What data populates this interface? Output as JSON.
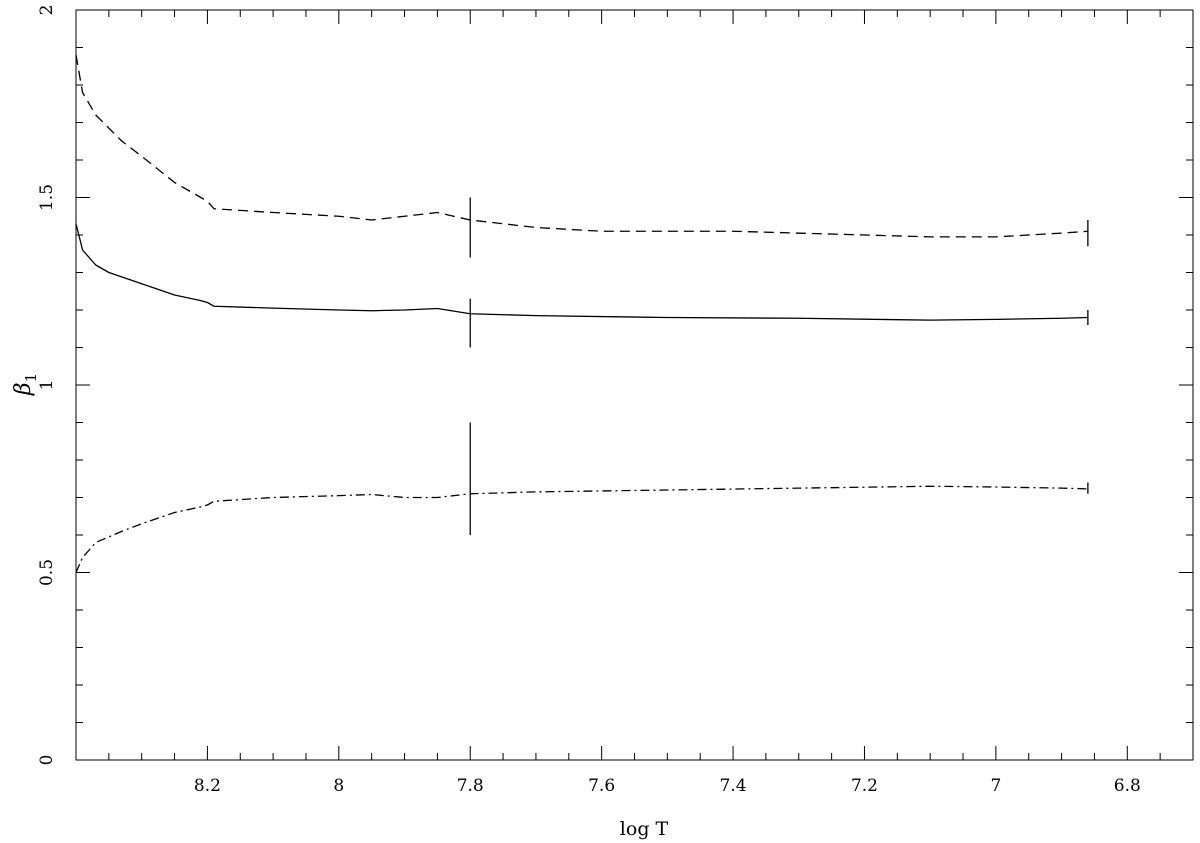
{
  "chart_data": {
    "type": "line",
    "xlabel": "log T",
    "ylabel": "β",
    "ylabel_subscript": "1",
    "xlim": [
      8.4,
      6.7
    ],
    "ylim": [
      0,
      2
    ],
    "x_reversed": true,
    "xticks": [
      8.2,
      8,
      7.8,
      7.6,
      7.4,
      7.2,
      7,
      6.8
    ],
    "xtick_labels": [
      "8.2",
      "8",
      "7.8",
      "7.6",
      "7.4",
      "7.2",
      "7",
      "6.8"
    ],
    "xminor_step": 0.05,
    "yticks": [
      0,
      0.5,
      1,
      1.5,
      2
    ],
    "ytick_labels": [
      "0",
      "0.5",
      "1",
      "1.5",
      "2"
    ],
    "yminor_step": 0.1,
    "grid": false,
    "legend": "none",
    "series": [
      {
        "line_style": "dashed",
        "x": [
          8.4,
          8.39,
          8.37,
          8.33,
          8.3,
          8.25,
          8.21,
          8.2,
          8.19,
          8.1,
          8.0,
          7.95,
          7.9,
          7.85,
          7.8,
          7.7,
          7.6,
          7.4,
          7.2,
          7.1,
          7.0,
          6.9,
          6.86
        ],
        "y": [
          1.88,
          1.78,
          1.72,
          1.65,
          1.61,
          1.54,
          1.5,
          1.49,
          1.47,
          1.46,
          1.45,
          1.44,
          1.45,
          1.46,
          1.44,
          1.42,
          1.41,
          1.41,
          1.4,
          1.395,
          1.395,
          1.405,
          1.41
        ]
      },
      {
        "line_style": "solid",
        "x": [
          8.4,
          8.39,
          8.37,
          8.35,
          8.3,
          8.25,
          8.21,
          8.2,
          8.19,
          8.1,
          8.0,
          7.95,
          7.9,
          7.85,
          7.8,
          7.7,
          7.5,
          7.3,
          7.1,
          7.0,
          6.9,
          6.86
        ],
        "y": [
          1.43,
          1.36,
          1.32,
          1.3,
          1.27,
          1.24,
          1.225,
          1.22,
          1.21,
          1.205,
          1.2,
          1.198,
          1.2,
          1.204,
          1.19,
          1.185,
          1.18,
          1.178,
          1.173,
          1.175,
          1.178,
          1.18
        ]
      },
      {
        "line_style": "dash-dot",
        "x": [
          8.4,
          8.39,
          8.37,
          8.33,
          8.3,
          8.25,
          8.21,
          8.2,
          8.19,
          8.1,
          8.0,
          7.95,
          7.9,
          7.85,
          7.8,
          7.7,
          7.5,
          7.3,
          7.1,
          7.0,
          6.9,
          6.86
        ],
        "y": [
          0.5,
          0.54,
          0.58,
          0.61,
          0.63,
          0.66,
          0.675,
          0.68,
          0.69,
          0.7,
          0.705,
          0.708,
          0.7,
          0.7,
          0.71,
          0.715,
          0.72,
          0.725,
          0.73,
          0.728,
          0.725,
          0.723
        ]
      }
    ],
    "vertical_markers": [
      {
        "x": 7.8,
        "y_ranges": [
          [
            1.34,
            1.5
          ],
          [
            1.1,
            1.23
          ],
          [
            0.6,
            0.9
          ]
        ]
      },
      {
        "x": 6.86,
        "y_ranges": [
          [
            1.37,
            1.44
          ],
          [
            1.16,
            1.2
          ],
          [
            0.71,
            0.74
          ]
        ]
      }
    ]
  }
}
